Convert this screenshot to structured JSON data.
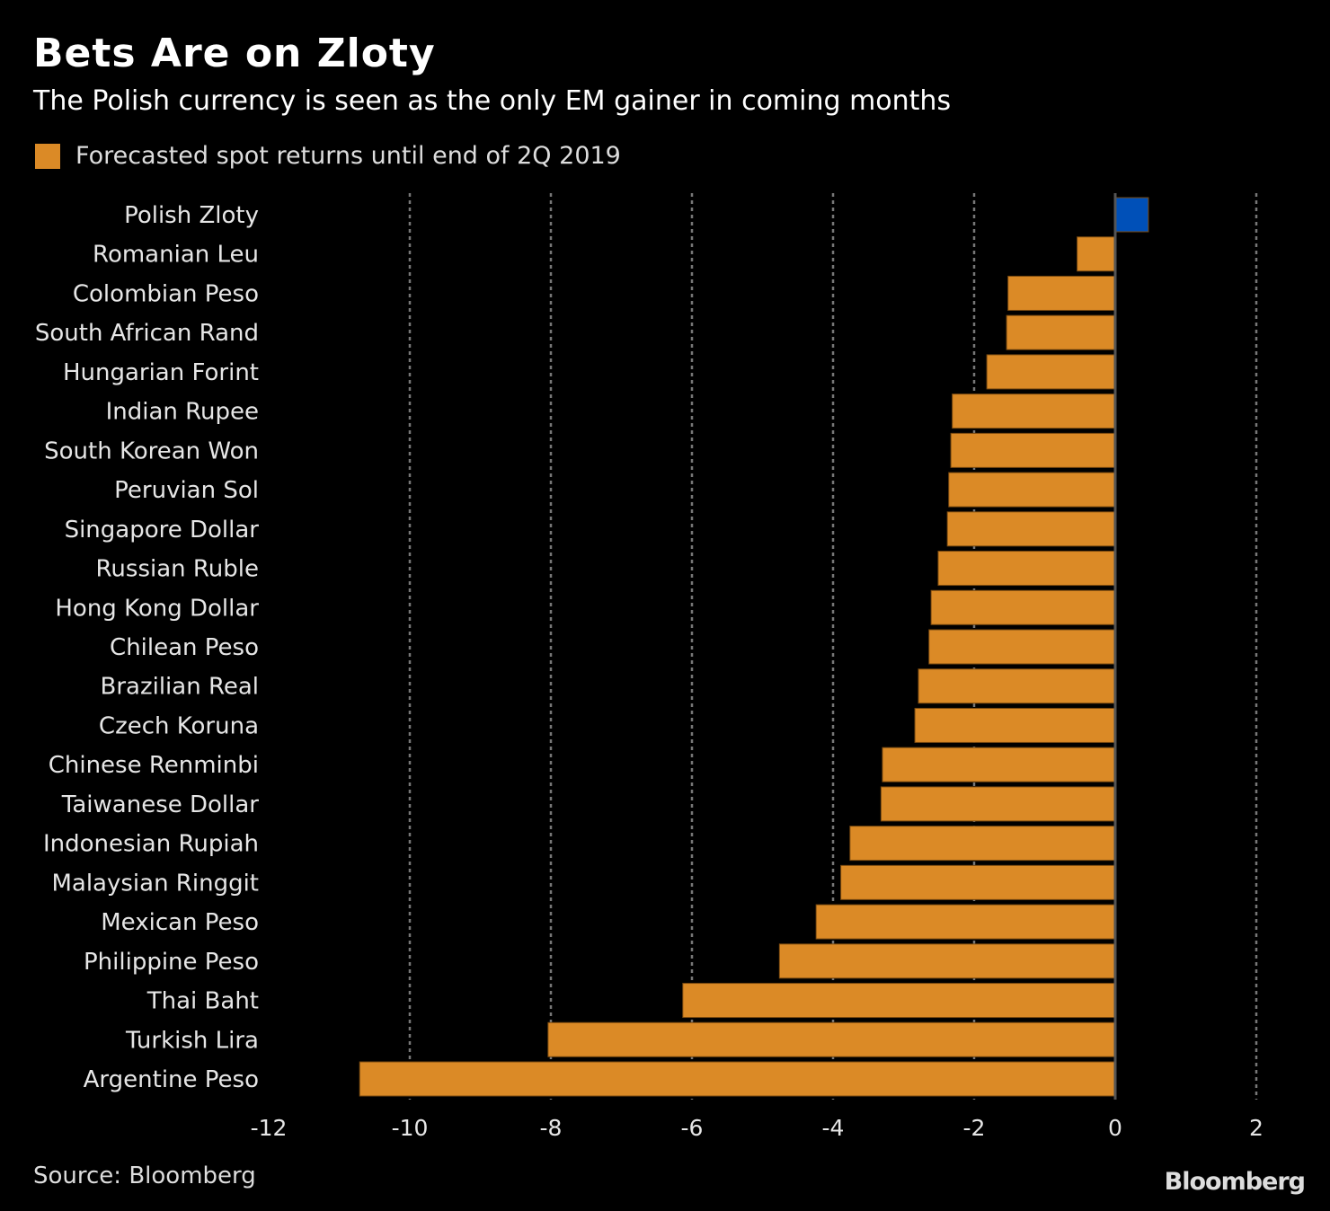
{
  "title": "Bets Are on Zloty",
  "subtitle": "The Polish currency is seen as the only EM gainer in coming months",
  "source": "Source: Bloomberg",
  "logo": "Bloomberg",
  "colors": {
    "negative": "#DB8A26",
    "positive": "#0050B8",
    "background": "#000000",
    "grid": "#777777"
  },
  "chart_data": {
    "type": "bar",
    "orientation": "horizontal",
    "title": "Bets Are on Zloty",
    "subtitle": "The Polish currency is seen as the only EM gainer in coming months",
    "legend": {
      "placement": "top-left",
      "entries": [
        "Forecasted spot returns until end of 2Q 2019"
      ]
    },
    "categories": [
      "Polish Zloty",
      "Romanian Leu",
      "Colombian Peso",
      "South African Rand",
      "Hungarian Forint",
      "Indian Rupee",
      "South Korean Won",
      "Peruvian Sol",
      "Singapore Dollar",
      "Russian Ruble",
      "Hong Kong Dollar",
      "Chilean Peso",
      "Brazilian Real",
      "Czech Koruna",
      "Chinese Renminbi",
      "Taiwanese Dollar",
      "Indonesian Rupiah",
      "Malaysian Ringgit",
      "Mexican Peso",
      "Philippine Peso",
      "Thai Baht",
      "Turkish Lira",
      "Argentine Peso"
    ],
    "series": [
      {
        "name": "Forecasted spot returns until end of 2Q 2019",
        "values": [
          0.47,
          -0.54,
          -1.52,
          -1.54,
          -1.82,
          -2.31,
          -2.33,
          -2.36,
          -2.38,
          -2.51,
          -2.61,
          -2.64,
          -2.79,
          -2.84,
          -3.3,
          -3.32,
          -3.76,
          -3.89,
          -4.24,
          -4.76,
          -6.13,
          -8.04,
          -10.71
        ]
      }
    ],
    "xlim": [
      -12,
      2
    ],
    "xticks": [
      "-12",
      "-10",
      "-8",
      "-6",
      "-4",
      "-2",
      "0",
      "2"
    ],
    "grid": "vertical dotted"
  }
}
